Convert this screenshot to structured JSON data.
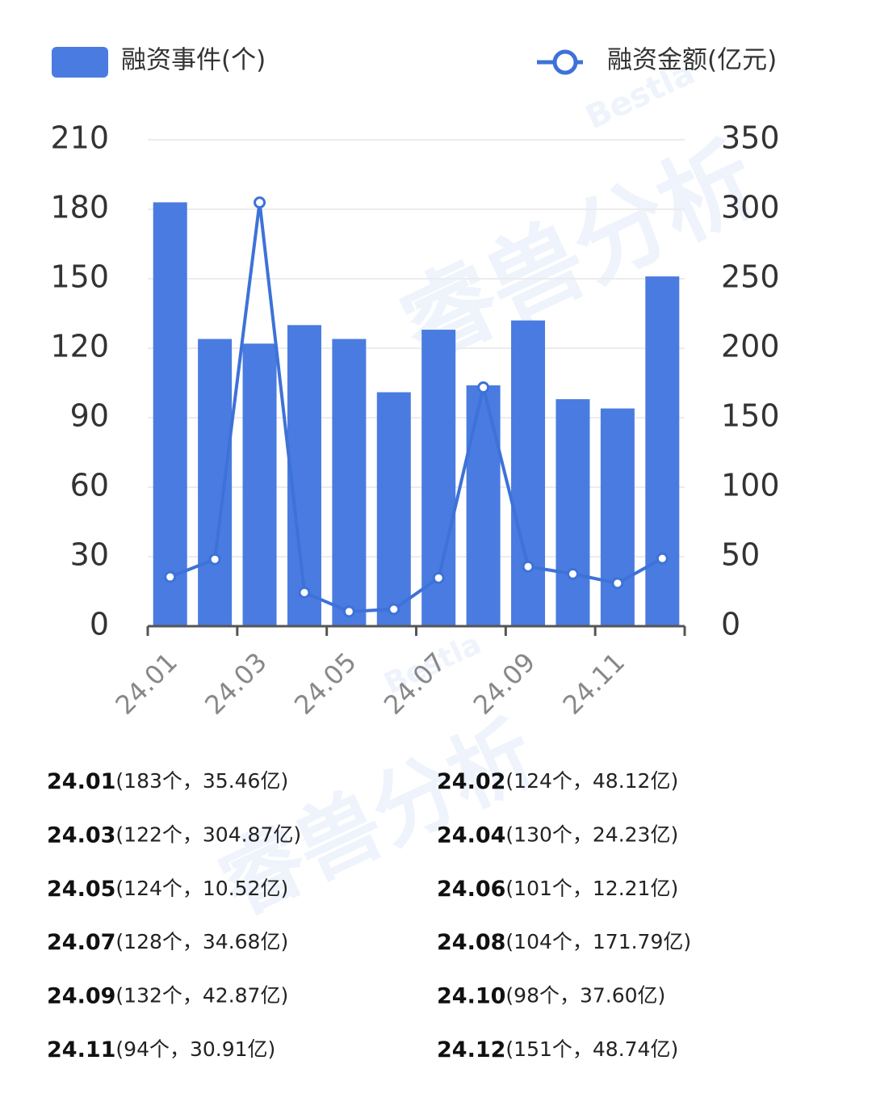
{
  "chart_data": {
    "type": "bar-line",
    "categories": [
      "24.01",
      null,
      "24.03",
      null,
      "24.05",
      null,
      "24.07",
      null,
      "24.09",
      null,
      "24.11",
      null
    ],
    "series": [
      {
        "name": "融资事件(个)",
        "type": "bar",
        "color": "#4a7be0",
        "axis": "y",
        "values": [
          183,
          124,
          122,
          130,
          124,
          101,
          128,
          104,
          132,
          98,
          94,
          151
        ]
      },
      {
        "name": "融资金额(亿元)",
        "type": "line",
        "color": "#3d72d8",
        "axis": "y2",
        "values": [
          35.46,
          48.12,
          304.87,
          24.23,
          10.52,
          12.21,
          34.68,
          171.79,
          42.87,
          37.6,
          30.91,
          48.74
        ]
      }
    ],
    "ylim": [
      0,
      210
    ],
    "yticks": [
      0,
      30,
      60,
      90,
      120,
      150,
      180,
      210
    ],
    "y2lim": [
      0,
      350
    ],
    "y2ticks": [
      0,
      50,
      100,
      150,
      200,
      250,
      300,
      350
    ],
    "grid": true
  },
  "watermark": {
    "brand": "Bestla",
    "text": "睿兽分析"
  },
  "list": [
    {
      "label": "24.01",
      "detail": "(183个，35.46亿)"
    },
    {
      "label": "24.02",
      "detail": "(124个，48.12亿)"
    },
    {
      "label": "24.03",
      "detail": "(122个，304.87亿)"
    },
    {
      "label": "24.04",
      "detail": "(130个，24.23亿)"
    },
    {
      "label": "24.05",
      "detail": "(124个，10.52亿)"
    },
    {
      "label": "24.06",
      "detail": "(101个，12.21亿)"
    },
    {
      "label": "24.07",
      "detail": "(128个，34.68亿)"
    },
    {
      "label": "24.08",
      "detail": "(104个，171.79亿)"
    },
    {
      "label": "24.09",
      "detail": "(132个，42.87亿)"
    },
    {
      "label": "24.10",
      "detail": "(98个，37.60亿)"
    },
    {
      "label": "24.11",
      "detail": "(94个，30.91亿)"
    },
    {
      "label": "24.12",
      "detail": "(151个，48.74亿)"
    }
  ]
}
